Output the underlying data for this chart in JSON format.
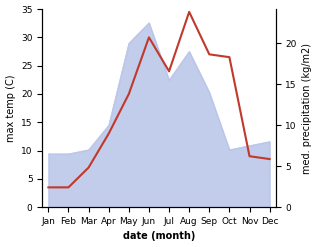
{
  "months": [
    "Jan",
    "Feb",
    "Mar",
    "Apr",
    "May",
    "Jun",
    "Jul",
    "Aug",
    "Sep",
    "Oct",
    "Nov",
    "Dec"
  ],
  "month_indices": [
    0,
    1,
    2,
    3,
    4,
    5,
    6,
    7,
    8,
    9,
    10,
    11
  ],
  "temperature": [
    3.5,
    3.5,
    7.0,
    13.0,
    20.0,
    30.0,
    24.0,
    34.5,
    27.0,
    26.5,
    9.0,
    8.5
  ],
  "precipitation": [
    6.5,
    6.5,
    7.0,
    10.0,
    20.0,
    22.5,
    15.5,
    19.0,
    14.0,
    7.0,
    7.5,
    8.0
  ],
  "temp_color": "#c0392b",
  "precip_fill_color": "#b8c4e8",
  "precip_fill_alpha": 0.85,
  "ylim_temp": [
    0,
    35
  ],
  "ylim_precip": [
    0,
    24.17
  ],
  "ylabel_left": "max temp (C)",
  "ylabel_right": "med. precipitation (kg/m2)",
  "xlabel": "date (month)",
  "yticks_left": [
    0,
    5,
    10,
    15,
    20,
    25,
    30,
    35
  ],
  "yticks_right": [
    0,
    5,
    10,
    15,
    20
  ],
  "background_color": "#ffffff",
  "label_fontsize": 7,
  "tick_fontsize": 6.5,
  "xlabel_fontweight": "bold"
}
